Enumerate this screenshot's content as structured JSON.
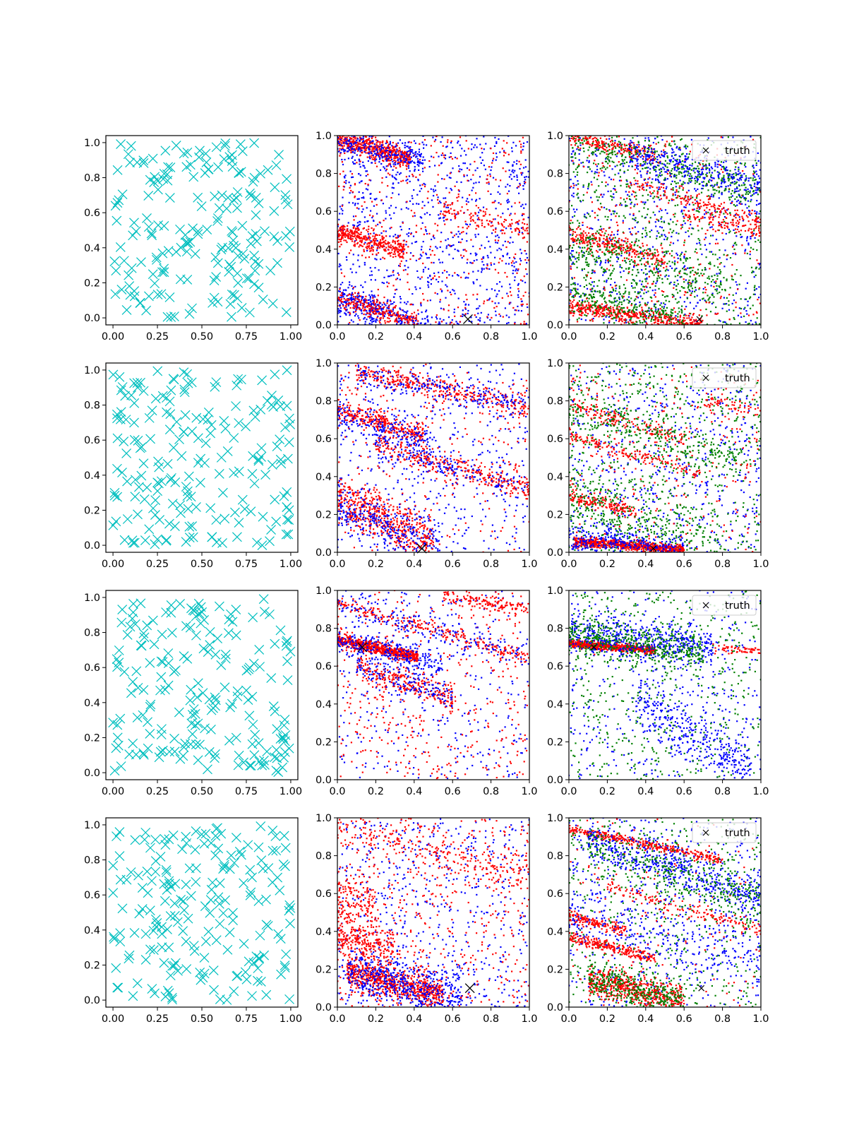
{
  "colors": {
    "cyan": "#00bfbf",
    "red": "#ff0000",
    "blue": "#0000ff",
    "green": "#008000",
    "truth": "#000000",
    "axes": "#000000"
  },
  "legend_label": "truth",
  "column_ticks": {
    "left": {
      "x": [
        "0.00",
        "0.25",
        "0.50",
        "0.75",
        "1.00"
      ],
      "y": [
        "0.0",
        "0.2",
        "0.4",
        "0.6",
        "0.8",
        "1.0"
      ]
    },
    "middle": {
      "x": [
        "0.0",
        "0.2",
        "0.4",
        "0.6",
        "0.8",
        "1.0"
      ],
      "y": [
        "0.0",
        "0.2",
        "0.4",
        "0.6",
        "0.8",
        "1.0"
      ]
    },
    "right": {
      "x": [
        "0.0",
        "0.2",
        "0.4",
        "0.6",
        "0.8",
        "1.0"
      ],
      "y": [
        "0.0",
        "0.2",
        "0.4",
        "0.6",
        "0.8",
        "1.0"
      ]
    }
  },
  "chart_data": [
    {
      "row": 1,
      "col": 1,
      "type": "scatter",
      "marker": "x",
      "color": "cyan",
      "xlim": [
        -0.04,
        1.04
      ],
      "ylim": [
        -0.04,
        1.04
      ],
      "uniform_points": 200
    },
    {
      "row": 1,
      "col": 2,
      "type": "scatter",
      "marker": "dot",
      "xlim": [
        0,
        1
      ],
      "ylim": [
        0,
        1
      ],
      "truth": [
        0.68,
        0.03
      ],
      "bands": [
        {
          "color": "red",
          "y0": 0.98,
          "slope": -0.28,
          "x0": 0.0,
          "x1": 0.38,
          "width": 0.025,
          "n": 500
        },
        {
          "color": "blue",
          "y0": 0.98,
          "slope": -0.28,
          "x0": 0.0,
          "x1": 0.45,
          "width": 0.04,
          "n": 250
        },
        {
          "color": "red",
          "y0": 0.49,
          "slope": -0.3,
          "x0": 0.0,
          "x1": 0.35,
          "width": 0.03,
          "n": 350
        },
        {
          "color": "blue",
          "y0": 0.15,
          "slope": -0.35,
          "x0": 0.0,
          "x1": 0.48,
          "width": 0.04,
          "n": 350
        },
        {
          "color": "red",
          "y0": 0.14,
          "slope": -0.3,
          "x0": 0.0,
          "x1": 0.42,
          "width": 0.03,
          "n": 250
        },
        {
          "color": "red",
          "y0": 0.72,
          "slope": -0.22,
          "x0": 0.55,
          "x1": 1.0,
          "width": 0.03,
          "n": 120
        }
      ],
      "noise": [
        {
          "color": "blue",
          "n": 900
        },
        {
          "color": "red",
          "n": 400
        }
      ]
    },
    {
      "row": 1,
      "col": 3,
      "type": "scatter",
      "marker": "dot",
      "xlim": [
        0,
        1
      ],
      "ylim": [
        0,
        1
      ],
      "truth": [
        0.68,
        0.03
      ],
      "legend": true,
      "bands": [
        {
          "color": "red",
          "y0": 1.0,
          "slope": -0.25,
          "x0": 0.0,
          "x1": 0.45,
          "width": 0.02,
          "n": 200
        },
        {
          "color": "green",
          "y0": 0.97,
          "slope": -0.28,
          "x0": 0.0,
          "x1": 1.0,
          "width": 0.05,
          "n": 300
        },
        {
          "color": "blue",
          "y0": 0.98,
          "slope": -0.26,
          "x0": 0.3,
          "x1": 1.0,
          "width": 0.05,
          "n": 300
        },
        {
          "color": "red",
          "y0": 0.85,
          "slope": -0.3,
          "x0": 0.3,
          "x1": 1.0,
          "width": 0.02,
          "n": 150
        },
        {
          "color": "red",
          "y0": 0.49,
          "slope": -0.3,
          "x0": 0.0,
          "x1": 0.5,
          "width": 0.03,
          "n": 250
        },
        {
          "color": "green",
          "y0": 0.42,
          "slope": -0.25,
          "x0": 0.0,
          "x1": 0.8,
          "width": 0.06,
          "n": 250
        },
        {
          "color": "red",
          "y0": 0.1,
          "slope": -0.15,
          "x0": 0.0,
          "x1": 0.7,
          "width": 0.02,
          "n": 450
        },
        {
          "color": "green",
          "y0": 0.16,
          "slope": -0.2,
          "x0": 0.0,
          "x1": 0.6,
          "width": 0.05,
          "n": 250
        },
        {
          "color": "red",
          "y0": 0.7,
          "slope": -0.2,
          "x0": 0.6,
          "x1": 1.0,
          "width": 0.02,
          "n": 100
        }
      ],
      "noise": [
        {
          "color": "blue",
          "n": 700
        },
        {
          "color": "green",
          "n": 700
        },
        {
          "color": "red",
          "n": 350
        }
      ]
    },
    {
      "row": 2,
      "col": 1,
      "type": "scatter",
      "marker": "x",
      "color": "cyan",
      "xlim": [
        -0.04,
        1.04
      ],
      "ylim": [
        -0.04,
        1.04
      ],
      "uniform_points": 200
    },
    {
      "row": 2,
      "col": 2,
      "type": "scatter",
      "marker": "dot",
      "xlim": [
        0,
        1
      ],
      "ylim": [
        0,
        1
      ],
      "truth": [
        0.44,
        0.02
      ],
      "bands": [
        {
          "color": "red",
          "y0": 0.97,
          "slope": -0.2,
          "x0": 0.1,
          "x1": 1.0,
          "width": 0.03,
          "n": 350
        },
        {
          "color": "blue",
          "y0": 0.97,
          "slope": -0.2,
          "x0": 0.1,
          "x1": 1.0,
          "width": 0.04,
          "n": 200
        },
        {
          "color": "red",
          "y0": 0.75,
          "slope": -0.3,
          "x0": 0.0,
          "x1": 0.45,
          "width": 0.03,
          "n": 300
        },
        {
          "color": "blue",
          "y0": 0.72,
          "slope": -0.3,
          "x0": 0.0,
          "x1": 0.5,
          "width": 0.05,
          "n": 200
        },
        {
          "color": "red",
          "y0": 0.63,
          "slope": -0.3,
          "x0": 0.2,
          "x1": 1.0,
          "width": 0.03,
          "n": 300
        },
        {
          "color": "blue",
          "y0": 0.63,
          "slope": -0.3,
          "x0": 0.2,
          "x1": 1.0,
          "width": 0.05,
          "n": 200
        },
        {
          "color": "red",
          "y0": 0.28,
          "slope": -0.45,
          "x0": 0.0,
          "x1": 0.5,
          "width": 0.06,
          "n": 500
        },
        {
          "color": "blue",
          "y0": 0.25,
          "slope": -0.45,
          "x0": 0.0,
          "x1": 0.55,
          "width": 0.07,
          "n": 300
        }
      ],
      "noise": [
        {
          "color": "blue",
          "n": 400
        },
        {
          "color": "red",
          "n": 300
        }
      ]
    },
    {
      "row": 2,
      "col": 3,
      "type": "scatter",
      "marker": "dot",
      "xlim": [
        0,
        1
      ],
      "ylim": [
        0,
        1
      ],
      "truth": [
        0.44,
        0.02
      ],
      "legend": true,
      "bands": [
        {
          "color": "red",
          "y0": 0.78,
          "slope": -0.3,
          "x0": 0.0,
          "x1": 0.6,
          "width": 0.02,
          "n": 150
        },
        {
          "color": "green",
          "y0": 0.75,
          "slope": -0.3,
          "x0": 0.0,
          "x1": 0.9,
          "width": 0.05,
          "n": 250
        },
        {
          "color": "red",
          "y0": 0.62,
          "slope": -0.3,
          "x0": 0.0,
          "x1": 0.7,
          "width": 0.02,
          "n": 150
        },
        {
          "color": "red",
          "y0": 0.3,
          "slope": -0.25,
          "x0": 0.0,
          "x1": 0.35,
          "width": 0.02,
          "n": 150
        },
        {
          "color": "green",
          "y0": 0.3,
          "slope": -0.4,
          "x0": 0.0,
          "x1": 0.8,
          "width": 0.08,
          "n": 300
        },
        {
          "color": "red",
          "y0": 0.06,
          "slope": -0.08,
          "x0": 0.02,
          "x1": 0.6,
          "width": 0.012,
          "n": 700
        },
        {
          "color": "blue",
          "y0": 0.08,
          "slope": -0.12,
          "x0": 0.0,
          "x1": 0.6,
          "width": 0.04,
          "n": 300
        },
        {
          "color": "red",
          "y0": 0.9,
          "slope": -0.15,
          "x0": 0.7,
          "x1": 1.0,
          "width": 0.02,
          "n": 60
        }
      ],
      "noise": [
        {
          "color": "blue",
          "n": 600
        },
        {
          "color": "green",
          "n": 700
        },
        {
          "color": "red",
          "n": 250
        }
      ]
    },
    {
      "row": 3,
      "col": 1,
      "type": "scatter",
      "marker": "x",
      "color": "cyan",
      "xlim": [
        -0.04,
        1.04
      ],
      "ylim": [
        -0.04,
        1.04
      ],
      "uniform_points": 200
    },
    {
      "row": 3,
      "col": 2,
      "type": "scatter",
      "marker": "dot",
      "xlim": [
        0,
        1
      ],
      "ylim": [
        0,
        1
      ],
      "truth": [
        0.13,
        0.7
      ],
      "bands": [
        {
          "color": "red",
          "y0": 0.74,
          "slope": -0.22,
          "x0": 0.0,
          "x1": 0.42,
          "width": 0.015,
          "n": 700
        },
        {
          "color": "blue",
          "y0": 0.73,
          "slope": -0.22,
          "x0": 0.0,
          "x1": 0.55,
          "width": 0.04,
          "n": 250
        },
        {
          "color": "red",
          "y0": 0.93,
          "slope": -0.28,
          "x0": 0.0,
          "x1": 1.0,
          "width": 0.02,
          "n": 250
        },
        {
          "color": "blue",
          "y0": 0.93,
          "slope": -0.28,
          "x0": 0.0,
          "x1": 1.0,
          "width": 0.03,
          "n": 150
        },
        {
          "color": "red",
          "y0": 1.05,
          "slope": -0.15,
          "x0": 0.55,
          "x1": 1.0,
          "width": 0.02,
          "n": 150
        },
        {
          "color": "red",
          "y0": 0.62,
          "slope": -0.3,
          "x0": 0.1,
          "x1": 0.6,
          "width": 0.03,
          "n": 250
        },
        {
          "color": "blue",
          "y0": 0.62,
          "slope": -0.3,
          "x0": 0.1,
          "x1": 0.6,
          "width": 0.04,
          "n": 150
        }
      ],
      "noise": [
        {
          "color": "blue",
          "n": 350
        },
        {
          "color": "red",
          "n": 400
        }
      ]
    },
    {
      "row": 3,
      "col": 3,
      "type": "scatter",
      "marker": "dot",
      "xlim": [
        0,
        1
      ],
      "ylim": [
        0,
        1
      ],
      "truth": [
        0.13,
        0.7
      ],
      "legend": true,
      "bands": [
        {
          "color": "red",
          "y0": 0.72,
          "slope": -0.08,
          "x0": 0.0,
          "x1": 0.45,
          "width": 0.01,
          "n": 600
        },
        {
          "color": "blue",
          "y0": 0.78,
          "slope": -0.12,
          "x0": 0.0,
          "x1": 0.75,
          "width": 0.05,
          "n": 500
        },
        {
          "color": "green",
          "y0": 0.76,
          "slope": -0.12,
          "x0": 0.0,
          "x1": 0.7,
          "width": 0.05,
          "n": 450
        },
        {
          "color": "blue",
          "y0": 0.6,
          "slope": -0.55,
          "x0": 0.35,
          "x1": 0.95,
          "width": 0.07,
          "n": 350
        },
        {
          "color": "red",
          "y0": 0.73,
          "slope": -0.05,
          "x0": 0.75,
          "x1": 1.0,
          "width": 0.01,
          "n": 60
        }
      ],
      "noise": [
        {
          "color": "blue",
          "n": 400
        },
        {
          "color": "green",
          "n": 500
        }
      ]
    },
    {
      "row": 4,
      "col": 1,
      "type": "scatter",
      "marker": "x",
      "color": "cyan",
      "xlim": [
        -0.04,
        1.04
      ],
      "ylim": [
        -0.04,
        1.04
      ],
      "uniform_points": 200
    },
    {
      "row": 4,
      "col": 2,
      "type": "scatter",
      "marker": "dot",
      "xlim": [
        0,
        1
      ],
      "ylim": [
        0,
        1
      ],
      "truth": [
        0.69,
        0.1
      ],
      "bands": [
        {
          "color": "red",
          "y0": 0.2,
          "slope": -0.25,
          "x0": 0.05,
          "x1": 0.55,
          "width": 0.04,
          "n": 700
        },
        {
          "color": "blue",
          "y0": 0.2,
          "slope": -0.25,
          "x0": 0.05,
          "x1": 0.65,
          "width": 0.06,
          "n": 500
        },
        {
          "color": "red",
          "y0": 0.38,
          "slope": -0.3,
          "x0": 0.0,
          "x1": 0.3,
          "width": 0.05,
          "n": 250
        },
        {
          "color": "red",
          "y0": 0.6,
          "slope": -0.3,
          "x0": 0.0,
          "x1": 0.2,
          "width": 0.08,
          "n": 150
        },
        {
          "color": "red",
          "y0": 0.95,
          "slope": -0.25,
          "x0": 0.0,
          "x1": 1.0,
          "width": 0.05,
          "n": 250
        }
      ],
      "noise": [
        {
          "color": "blue",
          "n": 600
        },
        {
          "color": "red",
          "n": 450
        }
      ]
    },
    {
      "row": 4,
      "col": 3,
      "type": "scatter",
      "marker": "dot",
      "xlim": [
        0,
        1
      ],
      "ylim": [
        0,
        1
      ],
      "truth": [
        0.69,
        0.1
      ],
      "legend": true,
      "bands": [
        {
          "color": "red",
          "y0": 0.94,
          "slope": -0.2,
          "x0": 0.0,
          "x1": 0.8,
          "width": 0.012,
          "n": 350
        },
        {
          "color": "blue",
          "y0": 0.92,
          "slope": -0.35,
          "x0": 0.1,
          "x1": 1.0,
          "width": 0.06,
          "n": 500
        },
        {
          "color": "green",
          "y0": 0.9,
          "slope": -0.35,
          "x0": 0.1,
          "x1": 1.0,
          "width": 0.06,
          "n": 300
        },
        {
          "color": "red",
          "y0": 0.7,
          "slope": -0.3,
          "x0": 0.2,
          "x1": 1.0,
          "width": 0.02,
          "n": 150
        },
        {
          "color": "red",
          "y0": 0.48,
          "slope": -0.25,
          "x0": 0.0,
          "x1": 0.3,
          "width": 0.015,
          "n": 150
        },
        {
          "color": "red",
          "y0": 0.37,
          "slope": -0.25,
          "x0": 0.0,
          "x1": 0.45,
          "width": 0.015,
          "n": 250
        },
        {
          "color": "red",
          "y0": 0.17,
          "slope": -0.25,
          "x0": 0.1,
          "x1": 0.6,
          "width": 0.04,
          "n": 550
        },
        {
          "color": "green",
          "y0": 0.18,
          "slope": -0.25,
          "x0": 0.1,
          "x1": 0.6,
          "width": 0.05,
          "n": 350
        },
        {
          "color": "blue",
          "y0": 0.5,
          "slope": -0.25,
          "x0": 0.0,
          "x1": 1.0,
          "width": 0.08,
          "n": 250
        }
      ],
      "noise": [
        {
          "color": "blue",
          "n": 450
        },
        {
          "color": "green",
          "n": 550
        },
        {
          "color": "red",
          "n": 150
        }
      ]
    }
  ]
}
